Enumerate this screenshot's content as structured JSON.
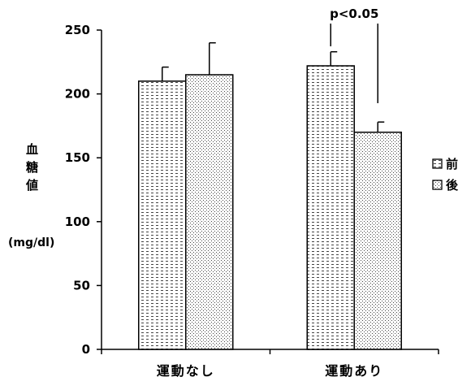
{
  "chart_data": {
    "type": "bar",
    "title": "",
    "ylabel": "血糖値",
    "ylabel_unit": "(mg/dl)",
    "xlabel": "",
    "ylim": [
      0,
      250
    ],
    "yticks": [
      0,
      50,
      100,
      150,
      200,
      250
    ],
    "categories": [
      "運動なし",
      "運動あり"
    ],
    "series": [
      {
        "name": "前",
        "values": [
          210,
          222
        ],
        "errors": [
          11,
          11
        ]
      },
      {
        "name": "後",
        "values": [
          215,
          170
        ],
        "errors": [
          25,
          8
        ]
      }
    ],
    "annotation": {
      "text": "p<0.05",
      "category_index": 1
    },
    "legend_position": "right",
    "grid": false
  }
}
